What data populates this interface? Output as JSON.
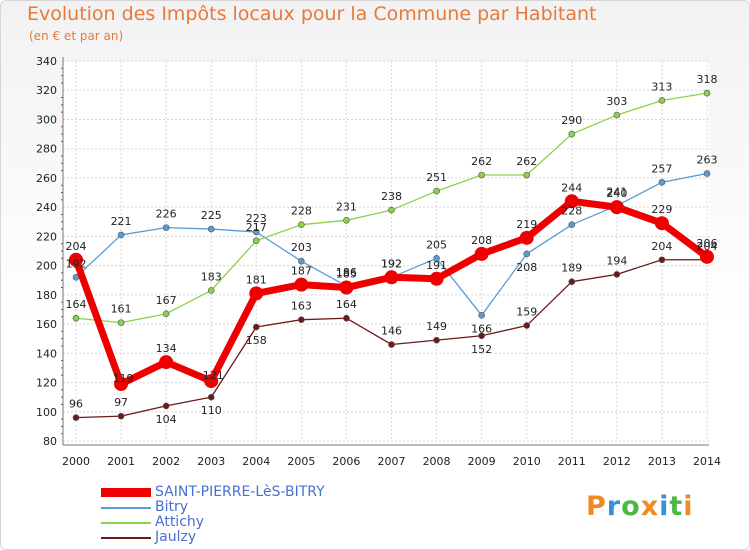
{
  "header": {
    "title": "Evolution des Impôts locaux pour la Commune par Habitant",
    "subtitle": "(en € et par an)"
  },
  "logo": {
    "letters": [
      "P",
      "r",
      "o",
      "x",
      "i",
      "t",
      "i"
    ],
    "colors": [
      "#f08a24",
      "#3b8ed8",
      "#4db848",
      "#f08a24",
      "#3b8ed8",
      "#4db848",
      "#f08a24"
    ]
  },
  "chart_data": {
    "type": "line",
    "title": "Evolution des Impôts locaux pour la Commune par Habitant",
    "subtitle": "(en € et par an)",
    "xlabel": "",
    "ylabel": "",
    "categories": [
      "2000",
      "2001",
      "2002",
      "2003",
      "2004",
      "2005",
      "2006",
      "2007",
      "2008",
      "2009",
      "2010",
      "2011",
      "2012",
      "2013",
      "2014"
    ],
    "ylim": [
      80,
      340
    ],
    "yticks": [
      80,
      100,
      120,
      140,
      160,
      180,
      200,
      220,
      240,
      260,
      280,
      300,
      320,
      340
    ],
    "grid": true,
    "legend_position": "bottom-left",
    "series": [
      {
        "name": "SAINT-PIERRE-LèS-BITRY",
        "color": "#ee0000",
        "bold": true,
        "values": [
          204,
          119,
          134,
          121,
          181,
          187,
          185,
          192,
          191,
          208,
          219,
          244,
          240,
          229,
          206
        ]
      },
      {
        "name": "Bitry",
        "color": "#5b9bd5",
        "values": [
          192,
          221,
          226,
          225,
          223,
          203,
          186,
          192,
          205,
          166,
          208,
          228,
          241,
          257,
          263
        ]
      },
      {
        "name": "Attichy",
        "color": "#8ad24a",
        "values": [
          164,
          161,
          167,
          183,
          217,
          228,
          231,
          238,
          251,
          262,
          262,
          290,
          303,
          313,
          318
        ]
      },
      {
        "name": "Jaulzy",
        "color": "#6b1a1a",
        "values": [
          96,
          97,
          104,
          110,
          158,
          163,
          164,
          146,
          149,
          152,
          159,
          189,
          194,
          204,
          204
        ]
      }
    ]
  }
}
